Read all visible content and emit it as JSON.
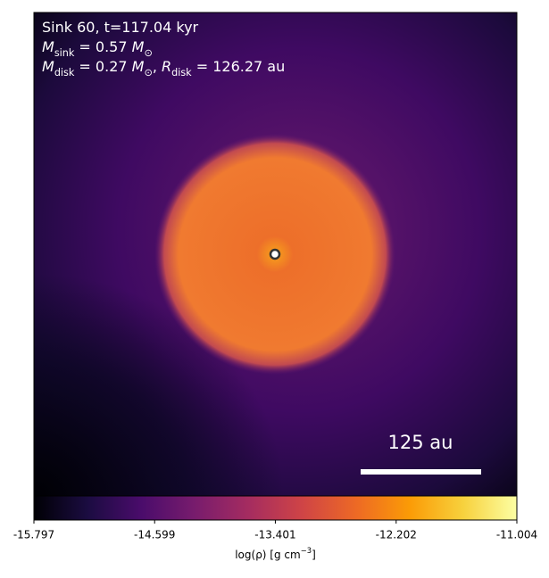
{
  "chart_data": {
    "type": "image",
    "annotations": [
      [
        {
          "text": "Sink 60, t=117.04 kyr",
          "style": "normal"
        }
      ],
      [
        {
          "text": "M",
          "style": "italic"
        },
        {
          "text": "sink",
          "style": "sub"
        },
        {
          "text": " = 0.57 ",
          "style": "normal"
        },
        {
          "text": "M",
          "style": "italic"
        },
        {
          "text": "⊙",
          "style": "sub"
        }
      ],
      [
        {
          "text": "M",
          "style": "italic"
        },
        {
          "text": "disk",
          "style": "sub"
        },
        {
          "text": " = 0.27 ",
          "style": "normal"
        },
        {
          "text": "M",
          "style": "italic"
        },
        {
          "text": "⊙",
          "style": "sub"
        },
        {
          "text": ", ",
          "style": "normal"
        },
        {
          "text": "R",
          "style": "italic"
        },
        {
          "text": "disk",
          "style": "sub"
        },
        {
          "text": " = 126.27 au",
          "style": "normal"
        }
      ]
    ],
    "scale_bar_label": "125 au",
    "colorbar": {
      "clim": [
        -15.797,
        -11.004
      ],
      "ticks": [
        -15.797,
        -14.599,
        -13.401,
        -12.202,
        -11.004
      ],
      "label": [
        {
          "text": "log(ρ) [g cm",
          "style": "normal"
        },
        {
          "text": "−3",
          "style": "sup"
        },
        {
          "text": "]",
          "style": "normal"
        }
      ],
      "colormap": [
        "#000004",
        "#1b0c41",
        "#4a0c6b",
        "#781c6d",
        "#a52c60",
        "#cf4446",
        "#ed6925",
        "#fb9b06",
        "#f7d13d",
        "#fcffa4"
      ]
    }
  }
}
